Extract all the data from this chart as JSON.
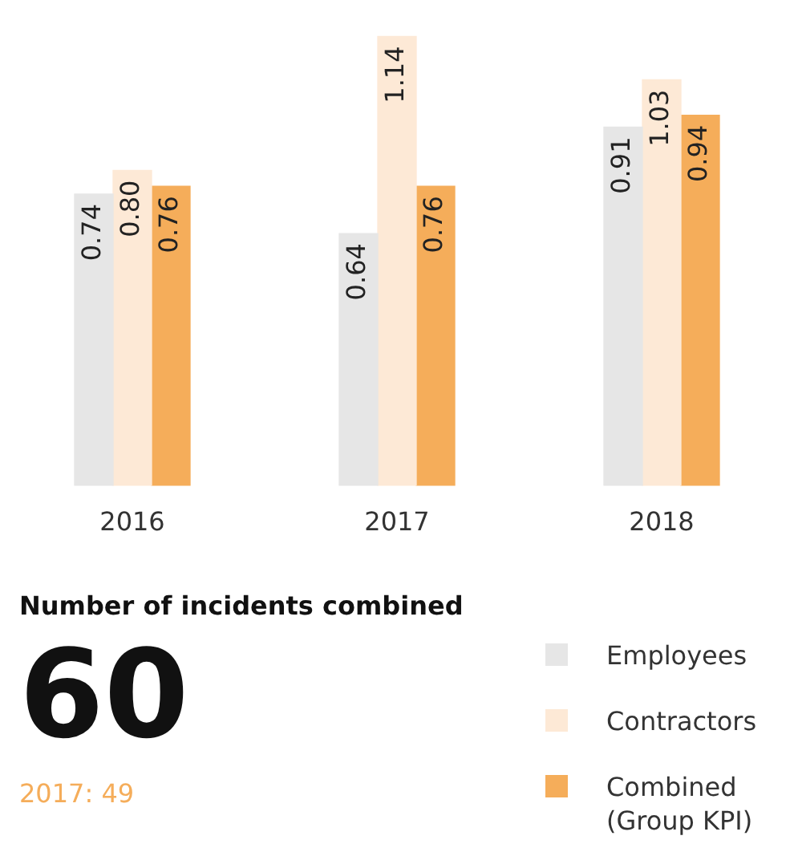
{
  "chart_data": {
    "type": "bar",
    "categories": [
      "2016",
      "2017",
      "2018"
    ],
    "series": [
      {
        "name": "Employees",
        "color": "#e6e6e6",
        "values": [
          0.74,
          0.64,
          0.91
        ],
        "value_labels": [
          "0.74",
          "0.64",
          "0.91"
        ]
      },
      {
        "name": "Contractors",
        "color": "#fde9d6",
        "values": [
          0.8,
          1.14,
          1.03
        ],
        "value_labels": [
          "0.80",
          "1.14",
          "1.03"
        ]
      },
      {
        "name": "Combined (Group KPI)",
        "color": "#f5ad5a",
        "values": [
          0.76,
          0.76,
          0.94
        ],
        "value_labels": [
          "0.76",
          "0.76",
          "0.94"
        ]
      }
    ],
    "grid": false,
    "legend": "bottom right",
    "annotations": [
      "Number of incidents combined",
      "60",
      "2017: 49"
    ]
  }
}
